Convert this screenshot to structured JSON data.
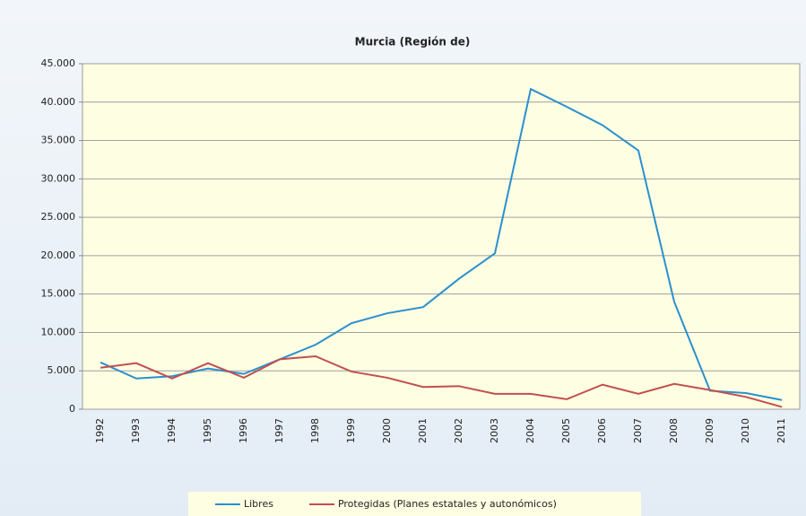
{
  "chart_data": {
    "type": "line",
    "title": "Murcia (Región de)",
    "categories": [
      "1992",
      "1993",
      "1994",
      "1995",
      "1996",
      "1997",
      "1998",
      "1999",
      "2000",
      "2001",
      "2002",
      "2003",
      "2004",
      "2005",
      "2006",
      "2007",
      "2008",
      "2009",
      "2010",
      "2011"
    ],
    "series": [
      {
        "name": "Libres",
        "color": "#2a8fd0",
        "values": [
          6100,
          4000,
          4300,
          5300,
          4600,
          6500,
          8400,
          11200,
          12500,
          13300,
          17000,
          20300,
          41700,
          39400,
          37000,
          33700,
          14000,
          2400,
          2100,
          1200
        ]
      },
      {
        "name": "Protegidas (Planes estatales y autonómicos)",
        "color": "#c0504d",
        "values": [
          5400,
          6000,
          4000,
          6000,
          4100,
          6500,
          6900,
          4900,
          4100,
          2900,
          3000,
          2000,
          2000,
          1300,
          3200,
          2000,
          3300,
          2500,
          1600,
          300
        ]
      }
    ],
    "ylim": [
      0,
      45000
    ],
    "yticks": [
      0,
      {
        "value": 5000,
        "label": "5.000"
      },
      {
        "value": 10000,
        "label": "10.000"
      },
      {
        "value": 15000,
        "label": "15.000"
      },
      {
        "value": 20000,
        "label": "20.000"
      },
      {
        "value": 25000,
        "label": "25.000"
      },
      {
        "value": 30000,
        "label": "30.000"
      },
      {
        "value": 35000,
        "label": "35.000"
      },
      {
        "value": 40000,
        "label": "40.000"
      },
      {
        "value": 45000,
        "label": "45.000"
      }
    ],
    "grid": true,
    "legend": "bottom"
  }
}
